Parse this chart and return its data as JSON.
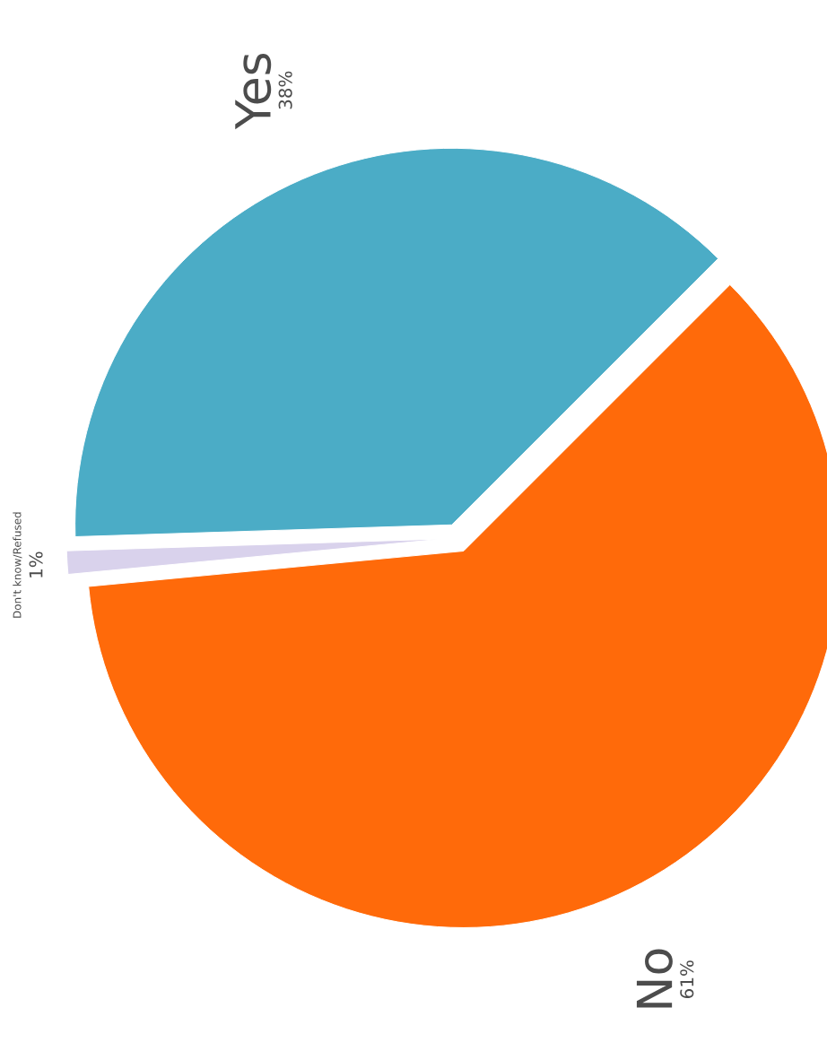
{
  "chart_data": {
    "type": "pie",
    "categories": [
      "Yes",
      "Don't know/Refused",
      "No"
    ],
    "values": [
      38,
      1,
      61
    ],
    "colors": [
      "#4bacc6",
      "#d9d2ec",
      "#ff6a0a"
    ],
    "value_labels": [
      "38%",
      "1%",
      "61%"
    ]
  }
}
